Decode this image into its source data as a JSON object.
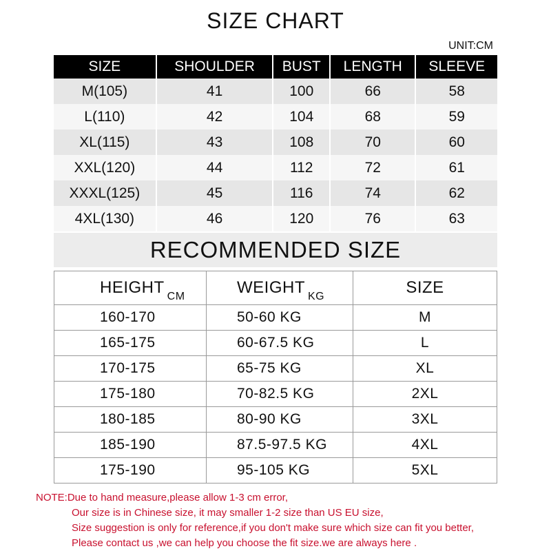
{
  "title": "SIZE CHART",
  "unit": "UNIT:CM",
  "size_table": {
    "headers": [
      "SIZE",
      "SHOULDER",
      "BUST",
      "LENGTH",
      "SLEEVE"
    ],
    "rows": [
      [
        "M(105)",
        "41",
        "100",
        "66",
        "58"
      ],
      [
        "L(110)",
        "42",
        "104",
        "68",
        "59"
      ],
      [
        "XL(115)",
        "43",
        "108",
        "70",
        "60"
      ],
      [
        "XXL(120)",
        "44",
        "112",
        "72",
        "61"
      ],
      [
        "XXXL(125)",
        "45",
        "116",
        "74",
        "62"
      ],
      [
        "4XL(130)",
        "46",
        "120",
        "76",
        "63"
      ]
    ]
  },
  "recommended": {
    "title": "RECOMMENDED SIZE",
    "headers": [
      {
        "label": "HEIGHT",
        "unit": "CM"
      },
      {
        "label": "WEIGHT",
        "unit": "KG"
      },
      {
        "label": "SIZE",
        "unit": ""
      }
    ],
    "rows": [
      [
        "160-170",
        "50-60 KG",
        "M"
      ],
      [
        "165-175",
        "60-67.5 KG",
        "L"
      ],
      [
        "170-175",
        "65-75 KG",
        "XL"
      ],
      [
        "175-180",
        "70-82.5 KG",
        "2XL"
      ],
      [
        "180-185",
        "80-90 KG",
        "3XL"
      ],
      [
        "185-190",
        "87.5-97.5 KG",
        "4XL"
      ],
      [
        "175-190",
        "95-105 KG",
        "5XL"
      ]
    ]
  },
  "note": [
    "NOTE:Due to hand measure,please allow 1-3 cm error,",
    "Our size is in Chinese size, it may smaller 1-2 size than US EU size,",
    "Size suggestion is only for reference,if you don't make sure which size can fit you better,",
    "Please contact  us ,we can help you choose the fit size.we are  always here ."
  ],
  "colors": {
    "header_bg": "#000000",
    "row_dark": "#e6e6e6",
    "row_light": "#f6f6f6",
    "note": "#c8102e"
  }
}
